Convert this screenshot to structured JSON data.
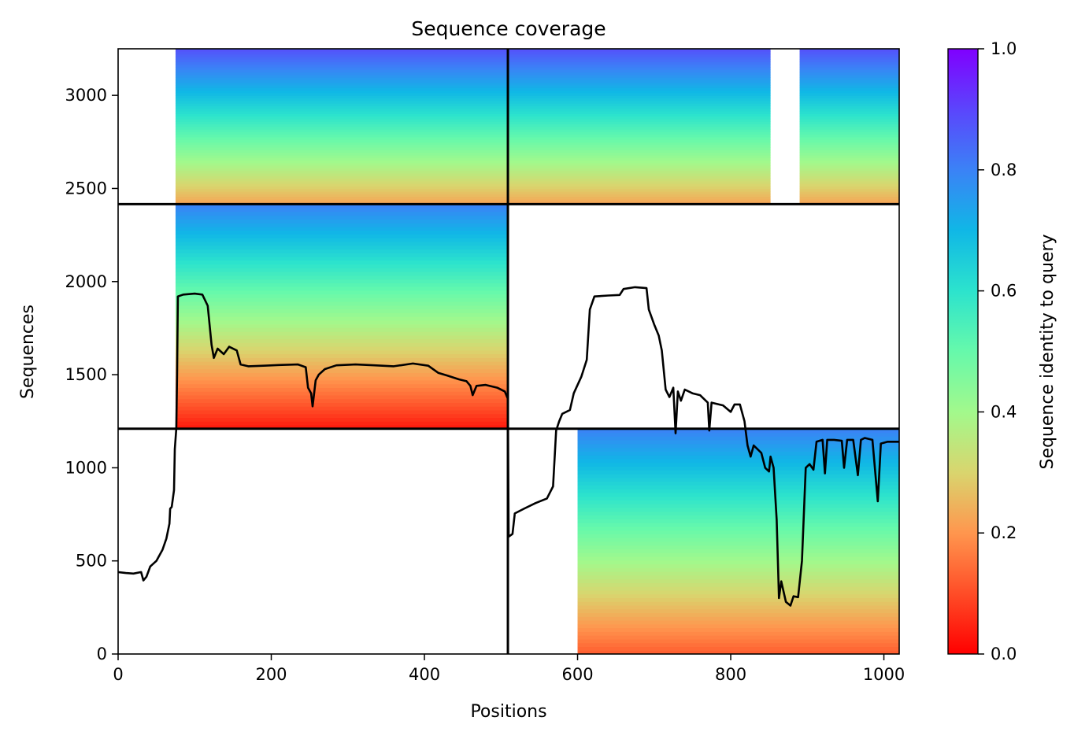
{
  "chart_data": {
    "type": "heatmap",
    "title": "Sequence coverage",
    "xlabel": "Positions",
    "ylabel": "Sequences",
    "xlim": [
      0,
      1020
    ],
    "ylim": [
      0,
      3250
    ],
    "x_ticks": [
      0,
      200,
      400,
      600,
      800,
      1000
    ],
    "y_ticks": [
      0,
      500,
      1000,
      1500,
      2000,
      2500,
      3000
    ],
    "grid": false,
    "colorbar": {
      "label": "Sequence identity to query",
      "range": [
        0,
        1
      ],
      "ticks": [
        "0.0",
        "0.2",
        "0.4",
        "0.6",
        "0.8",
        "1.0"
      ],
      "colormap": "rainbow_r"
    },
    "block_boundaries": {
      "x": [
        509
      ],
      "y": [
        1210,
        2416
      ]
    },
    "coverage_blocks": [
      {
        "x": [
          0,
          509
        ],
        "y": [
          2416,
          3250
        ],
        "identity_bottom": 0.22,
        "identity_top": 0.88,
        "covered_from_x": 75
      },
      {
        "x": [
          509,
          1020
        ],
        "y": [
          2416,
          3250
        ],
        "identity_bottom": 0.22,
        "identity_top": 0.88,
        "gap_x": [
          852,
          890
        ]
      },
      {
        "x": [
          0,
          509
        ],
        "y": [
          1210,
          2416
        ],
        "identity_bottom": 0.03,
        "identity_top": 0.8,
        "covered_from_x": 75
      },
      {
        "x": [
          509,
          1020
        ],
        "y": [
          0,
          1210
        ],
        "identity_bottom": 0.12,
        "identity_top": 0.8,
        "covered_from_x": 600
      }
    ],
    "coverage_line": {
      "name": "",
      "color": "#000000",
      "points": [
        [
          0,
          440
        ],
        [
          10,
          435
        ],
        [
          20,
          432
        ],
        [
          30,
          440
        ],
        [
          33,
          395
        ],
        [
          37,
          415
        ],
        [
          42,
          470
        ],
        [
          50,
          500
        ],
        [
          58,
          560
        ],
        [
          63,
          620
        ],
        [
          67,
          700
        ],
        [
          68,
          780
        ],
        [
          70,
          790
        ],
        [
          73,
          880
        ],
        [
          74,
          1100
        ],
        [
          76,
          1210
        ],
        [
          77,
          1500
        ],
        [
          78,
          1920
        ],
        [
          85,
          1930
        ],
        [
          100,
          1935
        ],
        [
          110,
          1930
        ],
        [
          117,
          1870
        ],
        [
          122,
          1660
        ],
        [
          125,
          1590
        ],
        [
          130,
          1640
        ],
        [
          138,
          1610
        ],
        [
          145,
          1650
        ],
        [
          155,
          1630
        ],
        [
          160,
          1555
        ],
        [
          170,
          1545
        ],
        [
          190,
          1548
        ],
        [
          210,
          1552
        ],
        [
          235,
          1555
        ],
        [
          245,
          1540
        ],
        [
          248,
          1430
        ],
        [
          252,
          1400
        ],
        [
          254,
          1330
        ],
        [
          258,
          1470
        ],
        [
          262,
          1500
        ],
        [
          270,
          1530
        ],
        [
          285,
          1550
        ],
        [
          310,
          1555
        ],
        [
          335,
          1550
        ],
        [
          360,
          1545
        ],
        [
          385,
          1560
        ],
        [
          405,
          1548
        ],
        [
          418,
          1510
        ],
        [
          430,
          1495
        ],
        [
          445,
          1475
        ],
        [
          455,
          1465
        ],
        [
          460,
          1440
        ],
        [
          463,
          1390
        ],
        [
          468,
          1440
        ],
        [
          480,
          1445
        ],
        [
          495,
          1430
        ],
        [
          505,
          1410
        ],
        [
          509,
          1370
        ],
        [
          510,
          630
        ],
        [
          515,
          645
        ],
        [
          518,
          755
        ],
        [
          530,
          780
        ],
        [
          545,
          810
        ],
        [
          560,
          835
        ],
        [
          568,
          900
        ],
        [
          572,
          1200
        ],
        [
          576,
          1250
        ],
        [
          580,
          1290
        ],
        [
          590,
          1310
        ],
        [
          595,
          1400
        ],
        [
          605,
          1490
        ],
        [
          612,
          1580
        ],
        [
          616,
          1850
        ],
        [
          622,
          1920
        ],
        [
          640,
          1925
        ],
        [
          655,
          1928
        ],
        [
          660,
          1960
        ],
        [
          675,
          1970
        ],
        [
          690,
          1965
        ],
        [
          693,
          1850
        ],
        [
          700,
          1770
        ],
        [
          706,
          1710
        ],
        [
          710,
          1630
        ],
        [
          715,
          1420
        ],
        [
          720,
          1380
        ],
        [
          725,
          1430
        ],
        [
          728,
          1185
        ],
        [
          731,
          1410
        ],
        [
          735,
          1360
        ],
        [
          740,
          1420
        ],
        [
          750,
          1400
        ],
        [
          760,
          1390
        ],
        [
          770,
          1350
        ],
        [
          772,
          1200
        ],
        [
          775,
          1350
        ],
        [
          790,
          1335
        ],
        [
          800,
          1300
        ],
        [
          805,
          1340
        ],
        [
          812,
          1340
        ],
        [
          818,
          1250
        ],
        [
          822,
          1120
        ],
        [
          826,
          1060
        ],
        [
          830,
          1120
        ],
        [
          840,
          1080
        ],
        [
          845,
          1000
        ],
        [
          850,
          980
        ],
        [
          852,
          1060
        ],
        [
          856,
          1000
        ],
        [
          860,
          720
        ],
        [
          863,
          300
        ],
        [
          866,
          390
        ],
        [
          872,
          280
        ],
        [
          878,
          260
        ],
        [
          882,
          310
        ],
        [
          888,
          305
        ],
        [
          893,
          500
        ],
        [
          898,
          1000
        ],
        [
          903,
          1020
        ],
        [
          908,
          990
        ],
        [
          912,
          1140
        ],
        [
          920,
          1150
        ],
        [
          923,
          970
        ],
        [
          926,
          1150
        ],
        [
          935,
          1150
        ],
        [
          945,
          1145
        ],
        [
          948,
          1000
        ],
        [
          952,
          1150
        ],
        [
          960,
          1150
        ],
        [
          966,
          960
        ],
        [
          970,
          1150
        ],
        [
          975,
          1160
        ],
        [
          985,
          1150
        ],
        [
          992,
          820
        ],
        [
          996,
          1130
        ],
        [
          1005,
          1140
        ],
        [
          1015,
          1140
        ],
        [
          1020,
          1140
        ]
      ]
    }
  }
}
